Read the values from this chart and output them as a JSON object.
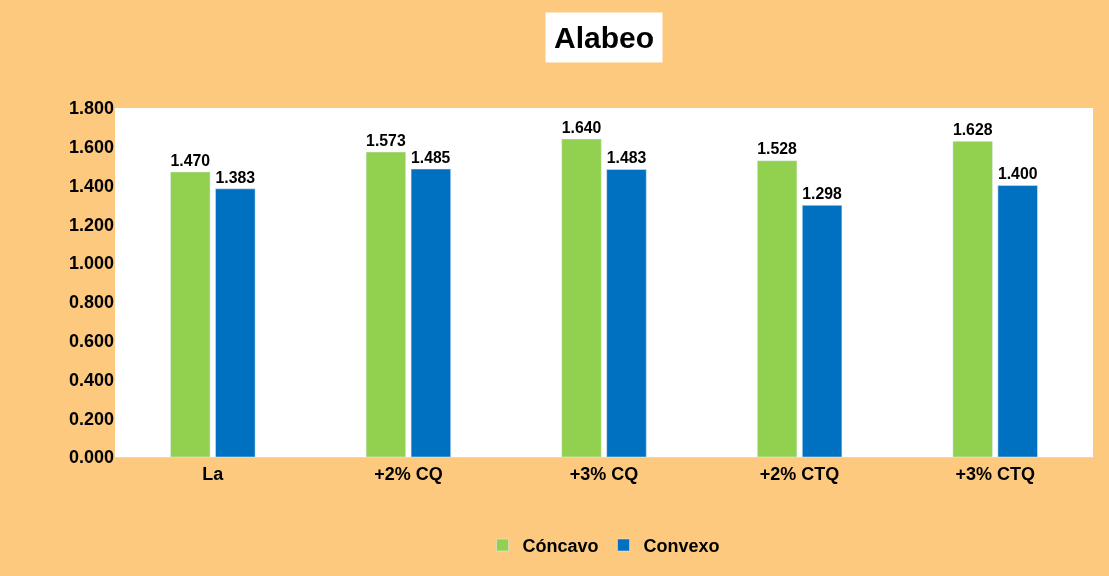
{
  "chart_data": {
    "type": "bar",
    "title": "Alabeo",
    "categories": [
      "La",
      "+2% CQ",
      "+3% CQ",
      "+2% CTQ",
      "+3% CTQ"
    ],
    "series": [
      {
        "name": "Cóncavo",
        "color": "#92d050",
        "values": [
          1.47,
          1.573,
          1.64,
          1.528,
          1.628
        ],
        "value_labels": [
          "1.470",
          "1.573",
          "1.640",
          "1.528",
          "1.628"
        ]
      },
      {
        "name": "Convexo",
        "color": "#0070c0",
        "values": [
          1.383,
          1.485,
          1.483,
          1.298,
          1.4
        ],
        "value_labels": [
          "1.383",
          "1.485",
          "1.483",
          "1.298",
          "1.400"
        ]
      }
    ],
    "ylim": [
      0,
      1.8
    ],
    "yticks": [
      {
        "value": 0,
        "label": "0.000"
      },
      {
        "value": 0.2,
        "label": "0.200"
      },
      {
        "value": 0.4,
        "label": "0.400"
      },
      {
        "value": 0.6,
        "label": "0.600"
      },
      {
        "value": 0.8,
        "label": "0.800"
      },
      {
        "value": 1.0,
        "label": "1.000"
      },
      {
        "value": 1.2,
        "label": "1.200"
      },
      {
        "value": 1.4,
        "label": "1.400"
      },
      {
        "value": 1.6,
        "label": "1.600"
      },
      {
        "value": 1.8,
        "label": "1.800"
      }
    ],
    "legend": "bottom"
  }
}
